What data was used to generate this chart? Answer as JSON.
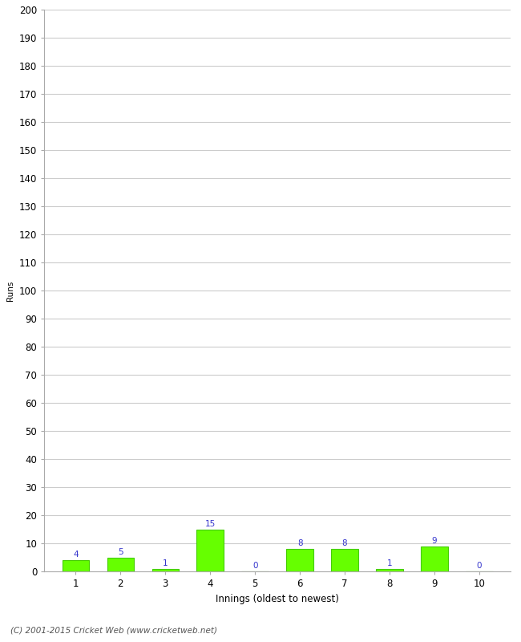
{
  "categories": [
    "1",
    "2",
    "3",
    "4",
    "5",
    "6",
    "7",
    "8",
    "9",
    "10"
  ],
  "values": [
    4,
    5,
    1,
    15,
    0,
    8,
    8,
    1,
    9,
    0
  ],
  "bar_color": "#66ff00",
  "bar_edge_color": "#44cc00",
  "label_color": "#3333cc",
  "xlabel": "Innings (oldest to newest)",
  "ylabel": "Runs",
  "ylim": [
    0,
    200
  ],
  "yticks": [
    0,
    10,
    20,
    30,
    40,
    50,
    60,
    70,
    80,
    90,
    100,
    110,
    120,
    130,
    140,
    150,
    160,
    170,
    180,
    190,
    200
  ],
  "background_color": "#ffffff",
  "grid_color": "#cccccc",
  "footer_text": "(C) 2001-2015 Cricket Web (www.cricketweb.net)",
  "label_fontsize": 7.5,
  "axis_fontsize": 8.5,
  "footer_fontsize": 7.5,
  "ylabel_fontsize": 7.5
}
